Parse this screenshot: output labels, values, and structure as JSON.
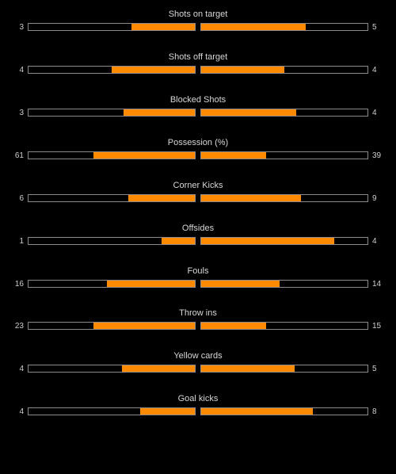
{
  "colors": {
    "background": "#000000",
    "bar_fill": "#ff8a00",
    "bar_border": "#8a8a8a",
    "text": "#d8d8d8"
  },
  "stats": [
    {
      "label": "Shots on target",
      "home": "3",
      "away": "5",
      "home_fraction": 0.38,
      "away_fraction": 0.63
    },
    {
      "label": "Shots off target",
      "home": "4",
      "away": "4",
      "home_fraction": 0.5,
      "away_fraction": 0.5
    },
    {
      "label": "Blocked Shots",
      "home": "3",
      "away": "4",
      "home_fraction": 0.43,
      "away_fraction": 0.57
    },
    {
      "label": "Possession (%)",
      "home": "61",
      "away": "39",
      "home_fraction": 0.61,
      "away_fraction": 0.39
    },
    {
      "label": "Corner Kicks",
      "home": "6",
      "away": "9",
      "home_fraction": 0.4,
      "away_fraction": 0.6
    },
    {
      "label": "Offsides",
      "home": "1",
      "away": "4",
      "home_fraction": 0.2,
      "away_fraction": 0.8
    },
    {
      "label": "Fouls",
      "home": "16",
      "away": "14",
      "home_fraction": 0.53,
      "away_fraction": 0.47
    },
    {
      "label": "Throw ins",
      "home": "23",
      "away": "15",
      "home_fraction": 0.61,
      "away_fraction": 0.39
    },
    {
      "label": "Yellow cards",
      "home": "4",
      "away": "5",
      "home_fraction": 0.44,
      "away_fraction": 0.56
    },
    {
      "label": "Goal kicks",
      "home": "4",
      "away": "8",
      "home_fraction": 0.33,
      "away_fraction": 0.67
    }
  ]
}
